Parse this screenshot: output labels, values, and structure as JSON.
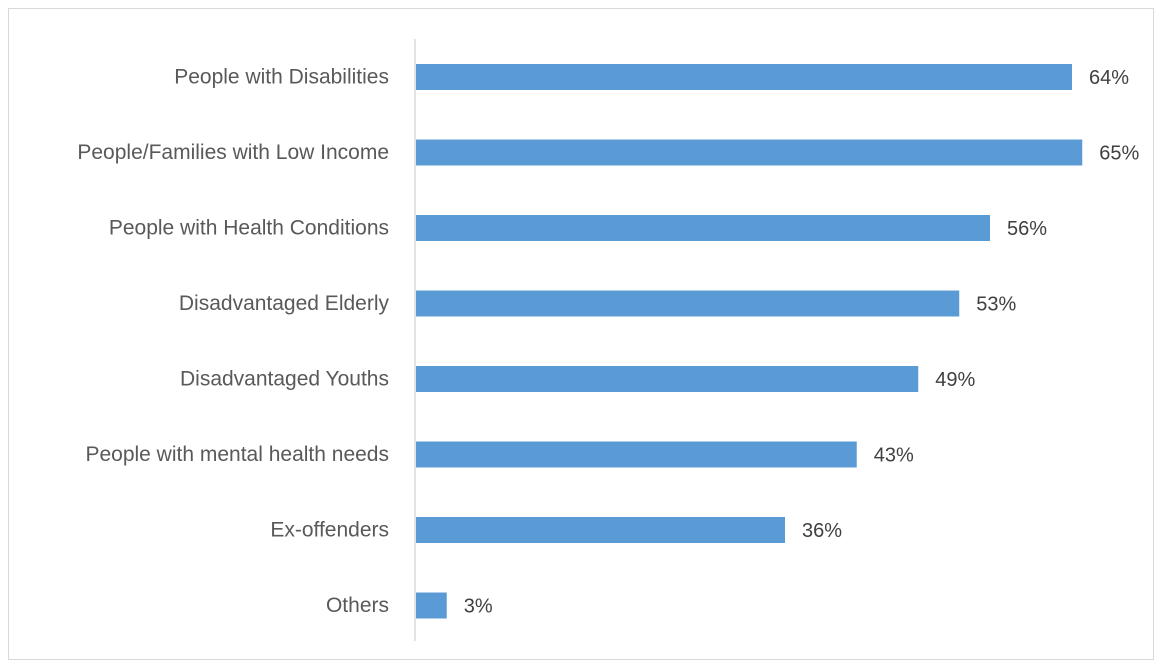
{
  "chart_data": {
    "type": "bar",
    "orientation": "horizontal",
    "categories": [
      "People with Disabilities",
      "People/Families with Low Income",
      "People with Health Conditions",
      "Disadvantaged Elderly",
      "Disadvantaged Youths",
      "People with mental health needs",
      "Ex-offenders",
      "Others"
    ],
    "values": [
      64,
      65,
      56,
      53,
      49,
      43,
      36,
      3
    ],
    "value_labels": [
      "64%",
      "65%",
      "56%",
      "53%",
      "49%",
      "43%",
      "36%",
      "3%"
    ],
    "unit": "%",
    "xlim": [
      0,
      70
    ],
    "bar_color": "#5b9bd5",
    "axis_color": "#d9d9d9",
    "grid": false,
    "legend": "none"
  }
}
